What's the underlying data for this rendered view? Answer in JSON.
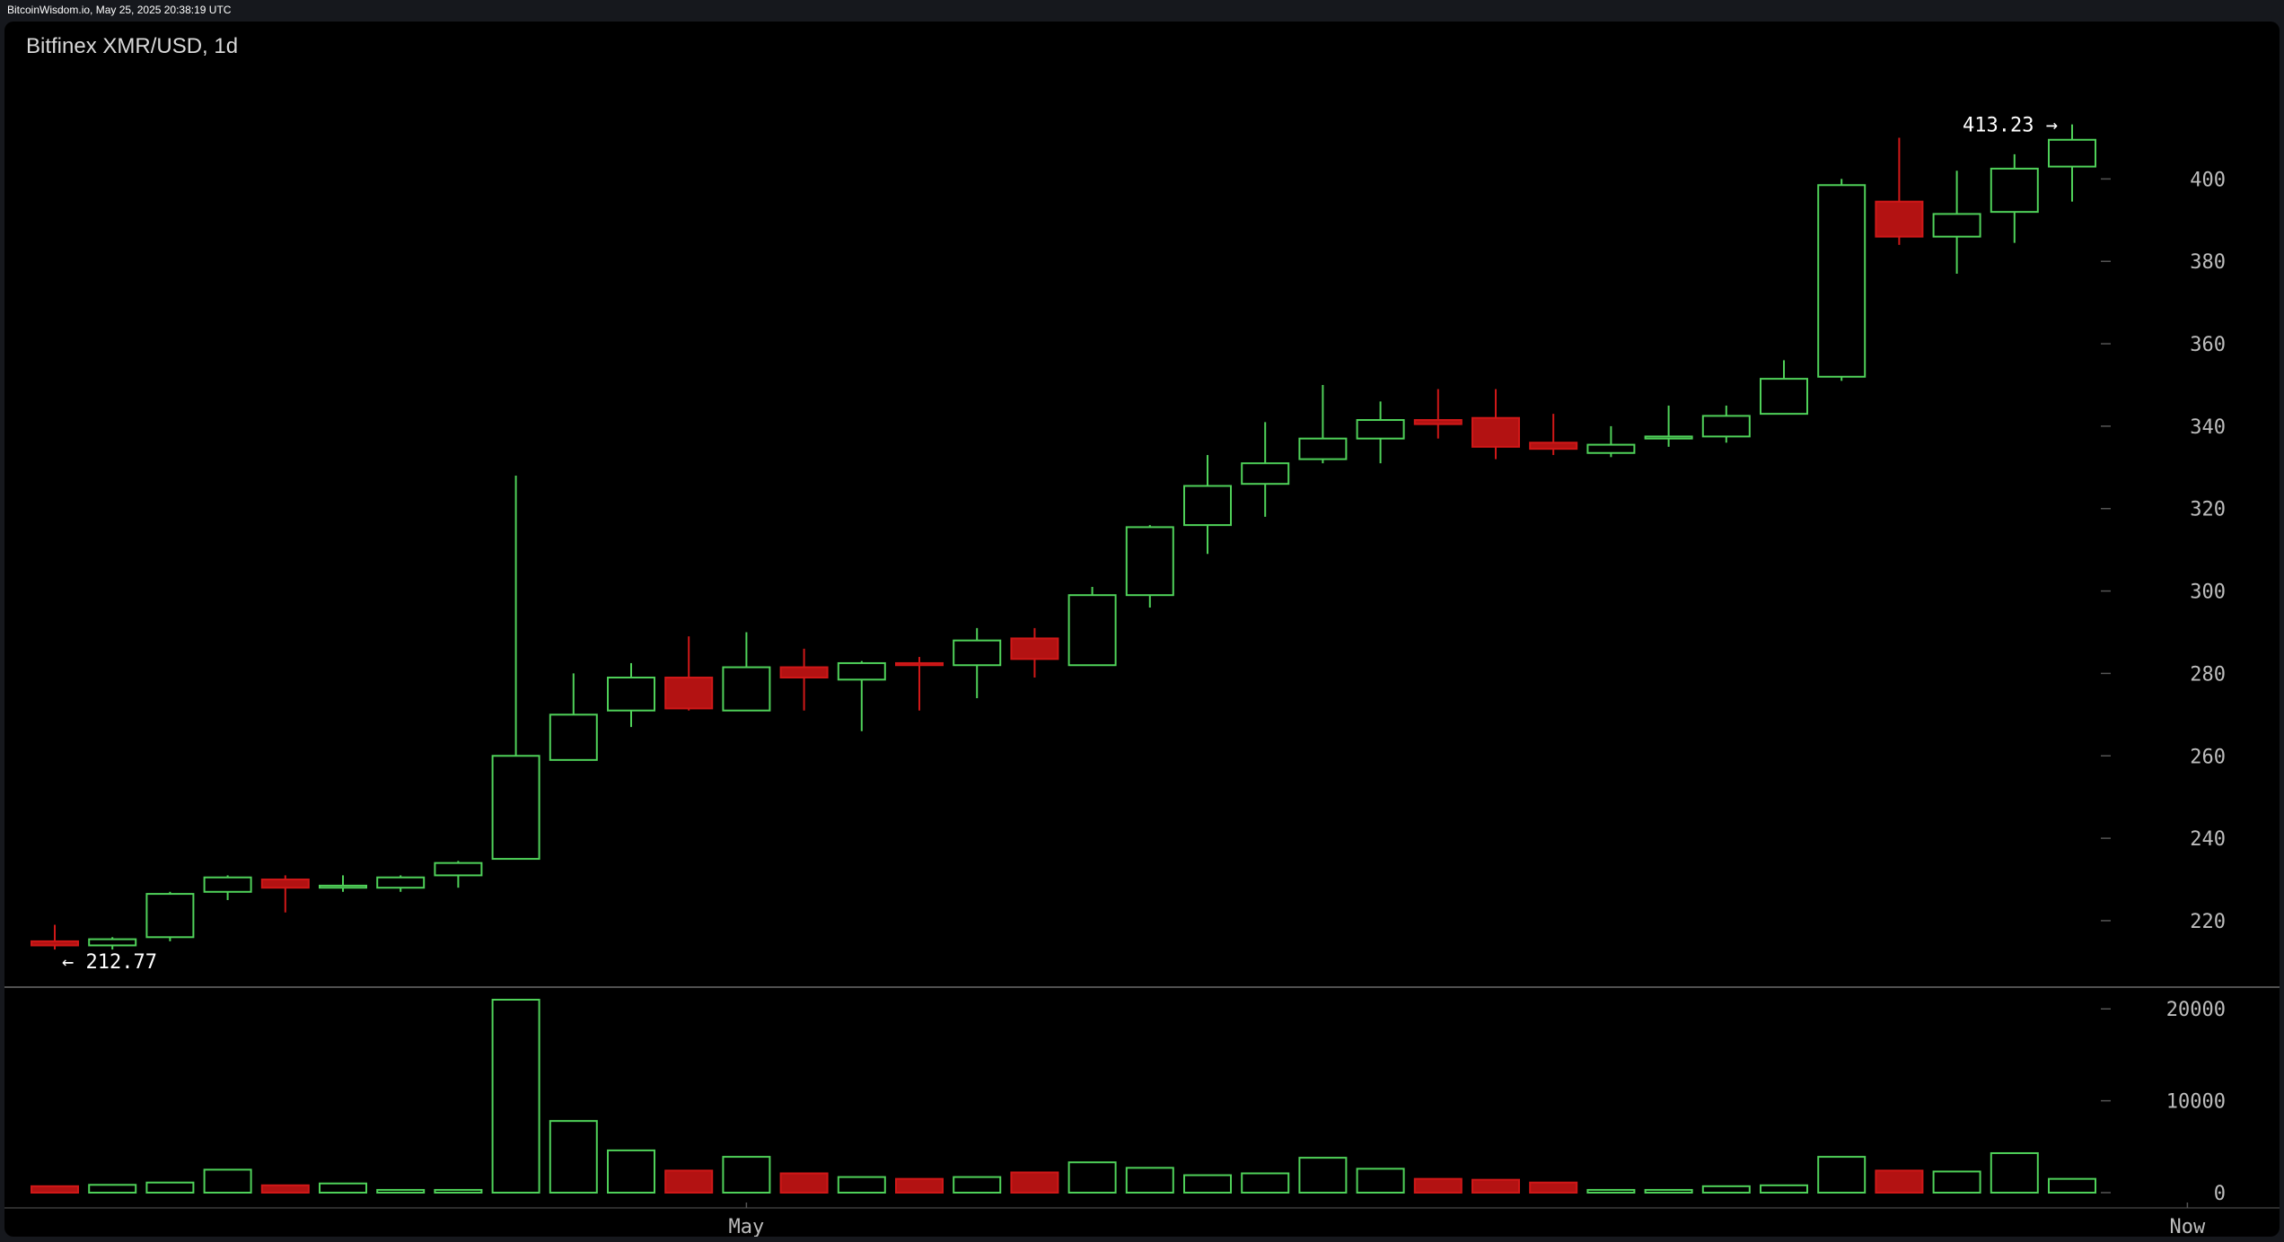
{
  "header": {
    "timestamp": "BitcoinWisdom.io, May 25, 2025 20:38:19 UTC"
  },
  "chart": {
    "title": "Bitfinex XMR/USD, 1d"
  },
  "colors": {
    "background": "#000000",
    "up": "#4fd159",
    "down": "#b31212",
    "down_border": "#d01818",
    "axis_text": "#bdbdbd",
    "divider": "#6a6a6a"
  },
  "chart_data": {
    "type": "candlestick",
    "title": "Bitfinex XMR/USD, 1d",
    "interval": "1d",
    "price_axis": {
      "ylim": [
        203,
        426
      ],
      "ticks": [
        220,
        240,
        260,
        280,
        300,
        320,
        340,
        360,
        380,
        400
      ]
    },
    "volume_axis": {
      "ylim": [
        0,
        21000
      ],
      "ticks": [
        0,
        10000,
        20000
      ]
    },
    "x_labels": [
      {
        "index": 12,
        "text": "May"
      },
      {
        "index": 37,
        "text": "Now"
      }
    ],
    "annotations": {
      "low": {
        "value": 212.77,
        "text": "← 212.77",
        "index": 0
      },
      "high": {
        "value": 413.23,
        "text": "413.23 →",
        "index": 35
      }
    },
    "candles": [
      {
        "o": 215,
        "h": 219,
        "l": 213,
        "c": 214,
        "v": 700
      },
      {
        "o": 214,
        "h": 216,
        "l": 213,
        "c": 215.5,
        "v": 850
      },
      {
        "o": 216,
        "h": 227,
        "l": 215,
        "c": 226.5,
        "v": 1100
      },
      {
        "o": 227,
        "h": 231,
        "l": 225,
        "c": 230.5,
        "v": 2500
      },
      {
        "o": 230,
        "h": 231,
        "l": 222,
        "c": 228,
        "v": 800
      },
      {
        "o": 228,
        "h": 231,
        "l": 227,
        "c": 228.5,
        "v": 1000
      },
      {
        "o": 228,
        "h": 231,
        "l": 227,
        "c": 230.5,
        "v": 300
      },
      {
        "o": 231,
        "h": 234.5,
        "l": 228,
        "c": 234,
        "v": 300
      },
      {
        "o": 235,
        "h": 328,
        "l": 235,
        "c": 260,
        "v": 21000
      },
      {
        "o": 259,
        "h": 280,
        "l": 259,
        "c": 270,
        "v": 7800
      },
      {
        "o": 271,
        "h": 282.5,
        "l": 267,
        "c": 279,
        "v": 4600
      },
      {
        "o": 279,
        "h": 289,
        "l": 271,
        "c": 271.5,
        "v": 2400
      },
      {
        "o": 271,
        "h": 290,
        "l": 271,
        "c": 281.5,
        "v": 3900
      },
      {
        "o": 281.5,
        "h": 286,
        "l": 271,
        "c": 279,
        "v": 2100
      },
      {
        "o": 278.5,
        "h": 283,
        "l": 266,
        "c": 282.5,
        "v": 1700
      },
      {
        "o": 282.5,
        "h": 284,
        "l": 271,
        "c": 282,
        "v": 1500
      },
      {
        "o": 282,
        "h": 291,
        "l": 274,
        "c": 288,
        "v": 1700
      },
      {
        "o": 288.5,
        "h": 291,
        "l": 279,
        "c": 283.5,
        "v": 2200
      },
      {
        "o": 282,
        "h": 301,
        "l": 282,
        "c": 299,
        "v": 3300
      },
      {
        "o": 299,
        "h": 316,
        "l": 296,
        "c": 315.5,
        "v": 2700
      },
      {
        "o": 316,
        "h": 333,
        "l": 309,
        "c": 325.5,
        "v": 1900
      },
      {
        "o": 326,
        "h": 341,
        "l": 318,
        "c": 331,
        "v": 2100
      },
      {
        "o": 332,
        "h": 350,
        "l": 331,
        "c": 337,
        "v": 3800
      },
      {
        "o": 337,
        "h": 346,
        "l": 331,
        "c": 341.5,
        "v": 2600
      },
      {
        "o": 341.5,
        "h": 349,
        "l": 337,
        "c": 340.5,
        "v": 1500
      },
      {
        "o": 342,
        "h": 349,
        "l": 332,
        "c": 335,
        "v": 1400
      },
      {
        "o": 336,
        "h": 343,
        "l": 333,
        "c": 334.5,
        "v": 1100
      },
      {
        "o": 333.5,
        "h": 340,
        "l": 332.5,
        "c": 335.5,
        "v": 300
      },
      {
        "o": 337,
        "h": 345,
        "l": 335,
        "c": 337.5,
        "v": 300
      },
      {
        "o": 337.5,
        "h": 345,
        "l": 336,
        "c": 342.5,
        "v": 700
      },
      {
        "o": 343,
        "h": 356,
        "l": 343,
        "c": 351.5,
        "v": 800
      },
      {
        "o": 352,
        "h": 400,
        "l": 351,
        "c": 398.5,
        "v": 3900
      },
      {
        "o": 394.5,
        "h": 410,
        "l": 384,
        "c": 386,
        "v": 2400
      },
      {
        "o": 386,
        "h": 402,
        "l": 377,
        "c": 391.5,
        "v": 2300
      },
      {
        "o": 392,
        "h": 406,
        "l": 384.5,
        "c": 402.5,
        "v": 4300
      },
      {
        "o": 403,
        "h": 413.23,
        "l": 394.5,
        "c": 409.5,
        "v": 1500
      }
    ]
  }
}
